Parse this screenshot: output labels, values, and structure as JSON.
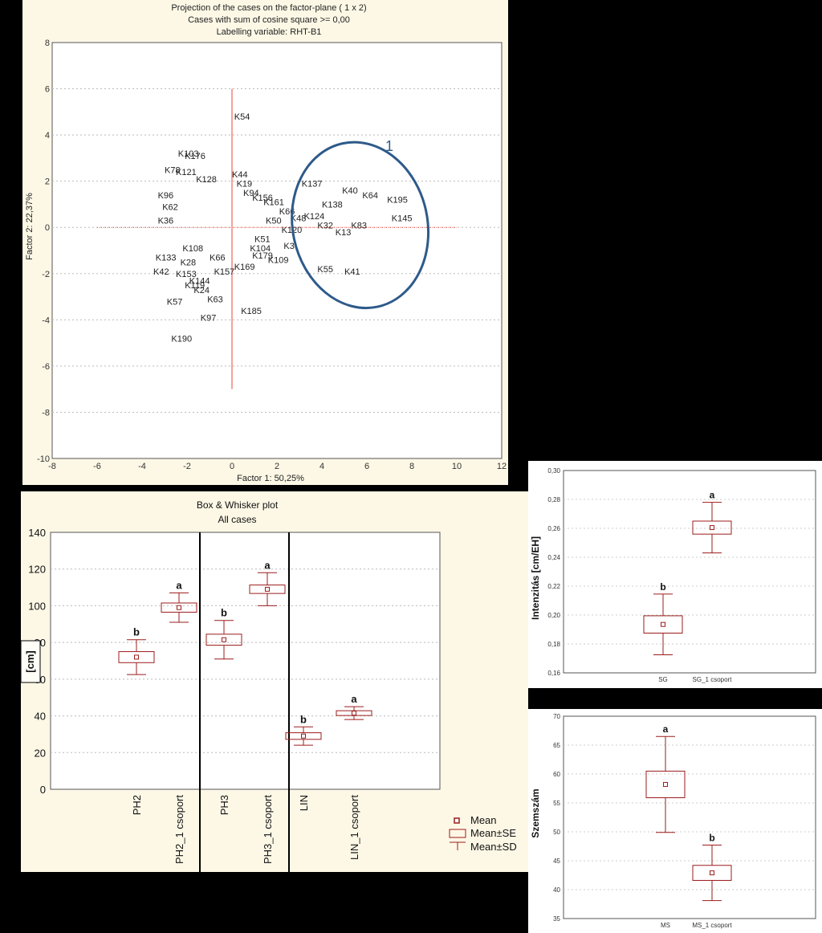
{
  "chart_data": [
    {
      "type": "scatter",
      "title_lines": [
        "Projection of the cases on the factor-plane (  1 x   2)",
        "Cases with sum of cosine square >= 0,00",
        "Labelling variable: RHT-B1"
      ],
      "xlabel": "Factor 1: 50,25%",
      "ylabel": "Factor 2: 22,37%",
      "xlim": [
        -8,
        12
      ],
      "ylim": [
        -10,
        8
      ],
      "xticks": [
        -8,
        -6,
        -4,
        -2,
        0,
        2,
        4,
        6,
        8,
        10,
        12
      ],
      "yticks": [
        -10,
        -8,
        -6,
        -4,
        -2,
        0,
        2,
        4,
        6,
        8
      ],
      "grid": true,
      "annotation_label": "1",
      "cluster_ellipse_color": "#2e5a8a",
      "axis_cross_color": "#e8463a",
      "points": [
        {
          "label": "K54",
          "x": 0.1,
          "y": 4.8
        },
        {
          "label": "K103",
          "x": -2.4,
          "y": 3.2
        },
        {
          "label": "K176",
          "x": -2.1,
          "y": 3.1
        },
        {
          "label": "K78",
          "x": -3.0,
          "y": 2.5
        },
        {
          "label": "K121",
          "x": -2.5,
          "y": 2.4
        },
        {
          "label": "K128",
          "x": -1.6,
          "y": 2.1
        },
        {
          "label": "K44",
          "x": 0.0,
          "y": 2.3
        },
        {
          "label": "K19",
          "x": 0.2,
          "y": 1.9
        },
        {
          "label": "K94",
          "x": 0.5,
          "y": 1.5
        },
        {
          "label": "K137",
          "x": 3.1,
          "y": 1.9
        },
        {
          "label": "K40",
          "x": 4.9,
          "y": 1.6
        },
        {
          "label": "K64",
          "x": 5.8,
          "y": 1.4
        },
        {
          "label": "K195",
          "x": 6.9,
          "y": 1.2
        },
        {
          "label": "K138",
          "x": 4.0,
          "y": 1.0
        },
        {
          "label": "K124",
          "x": 3.2,
          "y": 0.5
        },
        {
          "label": "K145",
          "x": 7.1,
          "y": 0.4
        },
        {
          "label": "K83",
          "x": 5.3,
          "y": 0.1
        },
        {
          "label": "K32",
          "x": 3.8,
          "y": 0.1
        },
        {
          "label": "K13",
          "x": 4.6,
          "y": -0.2
        },
        {
          "label": "K120",
          "x": 2.2,
          "y": -0.1
        },
        {
          "label": "K109",
          "x": 1.6,
          "y": -1.4
        },
        {
          "label": "K55",
          "x": 3.8,
          "y": -1.8
        },
        {
          "label": "K41",
          "x": 5.0,
          "y": -1.9
        },
        {
          "label": "K169",
          "x": 0.1,
          "y": -1.7
        },
        {
          "label": "K157",
          "x": -0.8,
          "y": -1.9
        },
        {
          "label": "K153",
          "x": -2.5,
          "y": -2.0
        },
        {
          "label": "K42",
          "x": -3.5,
          "y": -1.9
        },
        {
          "label": "K133",
          "x": -3.4,
          "y": -1.3
        },
        {
          "label": "K28",
          "x": -2.3,
          "y": -1.5
        },
        {
          "label": "K144",
          "x": -1.9,
          "y": -2.3
        },
        {
          "label": "K119",
          "x": -2.1,
          "y": -2.5
        },
        {
          "label": "K24",
          "x": -1.7,
          "y": -2.7
        },
        {
          "label": "K57",
          "x": -2.9,
          "y": -3.2
        },
        {
          "label": "K63",
          "x": -1.1,
          "y": -3.1
        },
        {
          "label": "K185",
          "x": 0.4,
          "y": -3.6
        },
        {
          "label": "K97",
          "x": -1.4,
          "y": -3.9
        },
        {
          "label": "K190",
          "x": -2.7,
          "y": -4.8
        },
        {
          "label": "K36",
          "x": -3.3,
          "y": 0.3
        },
        {
          "label": "K62",
          "x": -3.1,
          "y": 0.9
        },
        {
          "label": "K96",
          "x": -3.3,
          "y": 1.4
        },
        {
          "label": "K51",
          "x": 1.0,
          "y": -0.5
        },
        {
          "label": "K161",
          "x": 1.4,
          "y": 1.1
        },
        {
          "label": "K156",
          "x": 0.9,
          "y": 1.3
        },
        {
          "label": "K50",
          "x": 1.5,
          "y": 0.3
        },
        {
          "label": "K3",
          "x": 2.3,
          "y": -0.8
        },
        {
          "label": "K66",
          "x": 2.1,
          "y": 0.7
        },
        {
          "label": "K48",
          "x": 2.6,
          "y": 0.4
        },
        {
          "label": "K104",
          "x": 0.8,
          "y": -0.9
        },
        {
          "label": "K179",
          "x": 0.9,
          "y": -1.2
        },
        {
          "label": "K66",
          "x": -1.0,
          "y": -1.3
        },
        {
          "label": "K108",
          "x": -2.2,
          "y": -0.9
        }
      ]
    },
    {
      "type": "box",
      "title": "Box & Whisker plot",
      "subtitle": "All cases",
      "ylabel": "[cm]",
      "ylim": [
        0,
        140
      ],
      "yticks": [
        0,
        20,
        40,
        60,
        80,
        100,
        120,
        140
      ],
      "categories": [
        "PH2",
        "PH2_1 csoport",
        "PH3",
        "PH3_1 csoport",
        "LIN",
        "LIN_1 csoport"
      ],
      "mean": [
        72,
        99,
        81.5,
        109,
        29,
        41.5
      ],
      "se": [
        3,
        2.5,
        3,
        2.3,
        1.8,
        1.3
      ],
      "sd": [
        9.5,
        8,
        10.5,
        9,
        5,
        3.5
      ],
      "letters": [
        "b",
        "a",
        "b",
        "a",
        "b",
        "a"
      ],
      "legend": [
        "Mean",
        "Mean±SE",
        "Mean±SD"
      ],
      "color": "#9b1c1c"
    },
    {
      "type": "box",
      "ylabel": "Intenzitás [cm/EH]",
      "ylim": [
        0.16,
        0.3
      ],
      "yticks": [
        "0,16",
        "0,18",
        "0,20",
        "0,22",
        "0,24",
        "0,26",
        "0,28",
        "0,30"
      ],
      "categories": [
        "SG",
        "SG_1 csoport"
      ],
      "mean": [
        0.1935,
        0.2605
      ],
      "se": [
        0.006,
        0.0045
      ],
      "sd": [
        0.021,
        0.0175
      ],
      "letters": [
        "b",
        "a"
      ],
      "color": "#9b1c1c"
    },
    {
      "type": "box",
      "ylabel": "Szemszám",
      "ylim": [
        35,
        70
      ],
      "yticks": [
        "35",
        "40",
        "45",
        "50",
        "55",
        "60",
        "65",
        "70"
      ],
      "categories": [
        "MS",
        "MS_1 csoport"
      ],
      "mean": [
        58.2,
        42.9
      ],
      "se": [
        2.3,
        1.3
      ],
      "sd": [
        8.3,
        4.8
      ],
      "letters": [
        "a",
        "b"
      ],
      "color": "#9b1c1c"
    }
  ]
}
